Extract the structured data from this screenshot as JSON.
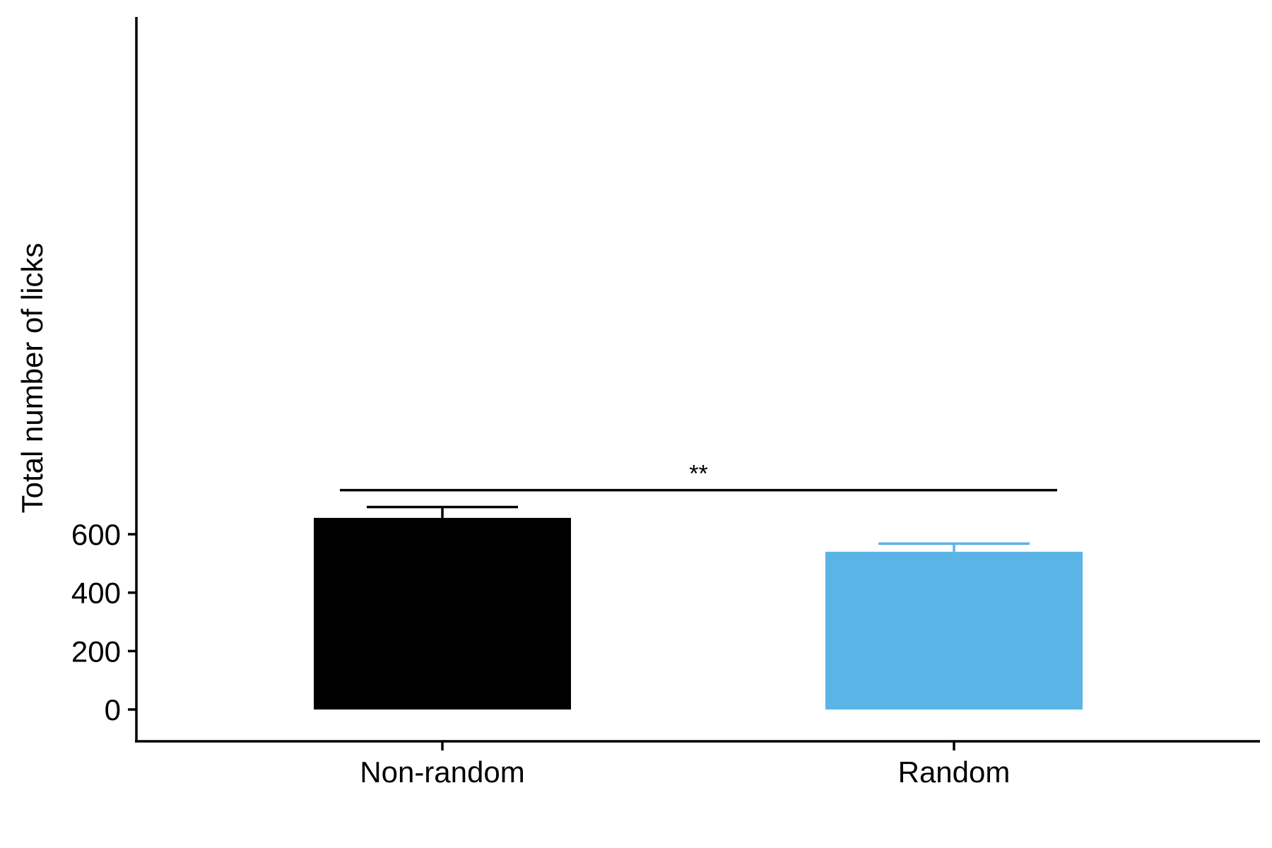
{
  "chart_data": {
    "type": "bar",
    "categories": [
      "Non-random",
      "Random"
    ],
    "values": [
      656,
      540
    ],
    "errors_upper": [
      693,
      568
    ],
    "colors": [
      "#000000",
      "#5AB4E5"
    ],
    "xlabel": "",
    "ylabel": "Total number of licks",
    "ylim": [
      -37,
      785
    ],
    "yticks": [
      0,
      200,
      400,
      600
    ],
    "grid": false,
    "legend": "none",
    "significance": {
      "label": "**",
      "y": 751,
      "from": "Non-random",
      "to": "Random"
    }
  }
}
